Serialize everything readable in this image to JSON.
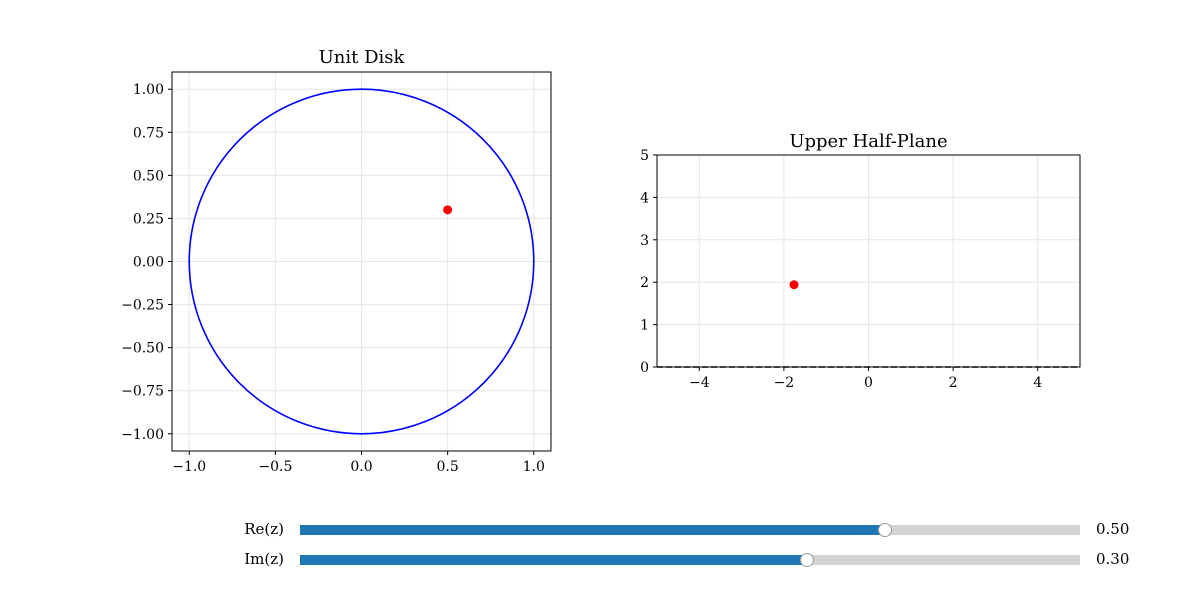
{
  "chart_data": [
    {
      "type": "scatter",
      "title": "Unit Disk",
      "xlim": [
        -1.1,
        1.1
      ],
      "ylim": [
        -1.1,
        1.1
      ],
      "xticks": [
        -1.0,
        -0.5,
        0.0,
        0.5,
        1.0
      ],
      "xticklabels": [
        "−1.0",
        "−0.5",
        "0.0",
        "0.5",
        "1.0"
      ],
      "yticks": [
        1.0,
        0.75,
        0.5,
        0.25,
        0.0,
        -0.25,
        -0.5,
        -0.75,
        -1.0
      ],
      "yticklabels": [
        "1.00",
        "0.75",
        "0.50",
        "0.25",
        "0.00",
        "−0.25",
        "−0.50",
        "−0.75",
        "−1.00"
      ],
      "grid": true,
      "circle": {
        "center": [
          0,
          0
        ],
        "radius": 1,
        "color": "#0000ff"
      },
      "points": [
        {
          "x": 0.5,
          "y": 0.3,
          "color": "#ff0000"
        }
      ]
    },
    {
      "type": "scatter",
      "title": "Upper Half-Plane",
      "xlim": [
        -5,
        5
      ],
      "ylim": [
        0,
        5
      ],
      "xticks": [
        -4,
        -2,
        0,
        2,
        4
      ],
      "xticklabels": [
        "−4",
        "−2",
        "0",
        "2",
        "4"
      ],
      "yticks": [
        5,
        4,
        3,
        2,
        1,
        0
      ],
      "yticklabels": [
        "5",
        "4",
        "3",
        "2",
        "1",
        "0"
      ],
      "grid": true,
      "baseline": {
        "y": 0,
        "style": "dashed",
        "color": "#000000"
      },
      "points": [
        {
          "x": -1.76,
          "y": 1.94,
          "color": "#ff0000"
        }
      ]
    }
  ],
  "sliders": [
    {
      "label": "Re(z)",
      "value": 0.5,
      "value_text": "0.50",
      "min": -1,
      "max": 1
    },
    {
      "label": "Im(z)",
      "value": 0.3,
      "value_text": "0.30",
      "min": -1,
      "max": 1
    }
  ],
  "colors": {
    "slider_fill": "#1f77b4",
    "slider_track": "#d3d3d3",
    "grid": "#e6e6e6"
  }
}
